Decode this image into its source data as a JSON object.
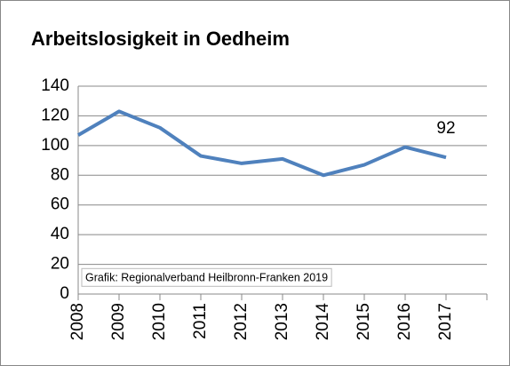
{
  "chart_data": {
    "type": "line",
    "title": "Arbeitslosigkeit in Oedheim",
    "categories": [
      "2008",
      "2009",
      "2010",
      "2011",
      "2012",
      "2013",
      "2014",
      "2015",
      "2016",
      "2017"
    ],
    "values": [
      107,
      123,
      112,
      93,
      88,
      91,
      80,
      87,
      99,
      92
    ],
    "color": "#4f81bd",
    "ylim": [
      0,
      140
    ],
    "yticks": [
      0,
      20,
      40,
      60,
      80,
      100,
      120,
      140
    ],
    "grid": true,
    "annotation": "Grafik: Regionalverband Heilbronn-Franken 2019"
  }
}
